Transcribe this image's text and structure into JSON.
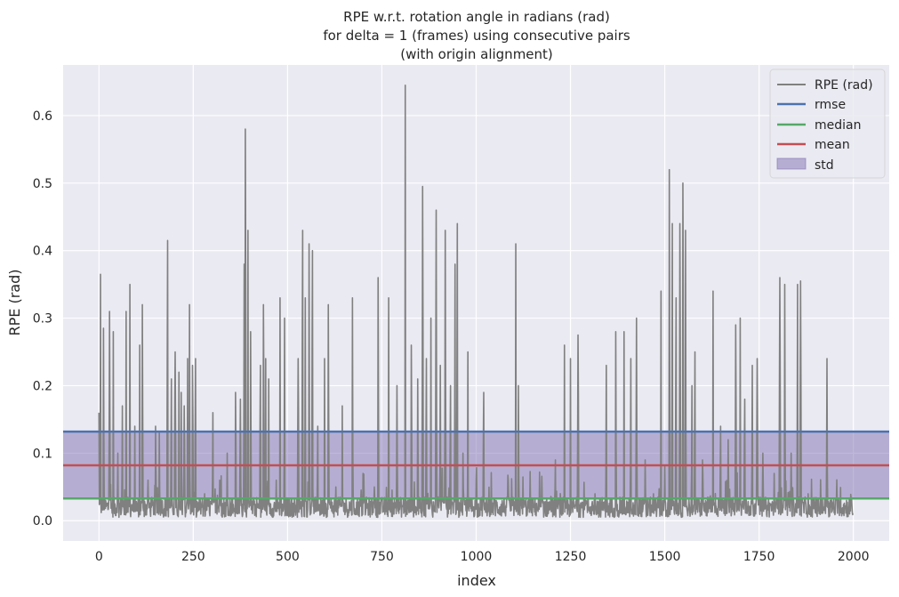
{
  "chart_data": {
    "type": "line",
    "title": [
      "RPE w.r.t. rotation angle in radians (rad)",
      "for delta = 1 (frames) using consecutive pairs",
      "(with origin alignment)"
    ],
    "xlabel": "index",
    "ylabel": "RPE (rad)",
    "xlim": [
      -95,
      2095
    ],
    "ylim": [
      -0.03,
      0.675
    ],
    "x_ticks": [
      0,
      250,
      500,
      750,
      1000,
      1250,
      1500,
      1750,
      2000
    ],
    "y_ticks": [
      0.0,
      0.1,
      0.2,
      0.3,
      0.4,
      0.5,
      0.6
    ],
    "y_tick_labels": [
      "0.0",
      "0.1",
      "0.2",
      "0.3",
      "0.4",
      "0.5",
      "0.6"
    ],
    "grid": true,
    "legend_position": "top-right",
    "colors": {
      "background": "#eaeaf2",
      "grid": "#ffffff",
      "rpe": "#808080",
      "rmse": "#4c72b0",
      "median": "#55a868",
      "mean": "#c44e52",
      "std": "#8172b2"
    },
    "stats": {
      "rmse": 0.132,
      "median": 0.033,
      "mean": 0.082,
      "std": 0.05
    },
    "std_band": [
      0.032,
      0.132
    ],
    "series": [
      {
        "name": "RPE (rad)",
        "kind": "line",
        "n_points": 2000,
        "baseline_low": 0.005,
        "baseline_high": 0.035,
        "peaks": [
          [
            0,
            0.16
          ],
          [
            4,
            0.365
          ],
          [
            12,
            0.285
          ],
          [
            28,
            0.31
          ],
          [
            38,
            0.28
          ],
          [
            50,
            0.1
          ],
          [
            62,
            0.17
          ],
          [
            72,
            0.31
          ],
          [
            82,
            0.35
          ],
          [
            95,
            0.14
          ],
          [
            108,
            0.26
          ],
          [
            115,
            0.32
          ],
          [
            130,
            0.06
          ],
          [
            150,
            0.14
          ],
          [
            160,
            0.13
          ],
          [
            182,
            0.415
          ],
          [
            192,
            0.21
          ],
          [
            202,
            0.25
          ],
          [
            212,
            0.22
          ],
          [
            218,
            0.19
          ],
          [
            226,
            0.17
          ],
          [
            235,
            0.24
          ],
          [
            240,
            0.32
          ],
          [
            248,
            0.23
          ],
          [
            256,
            0.24
          ],
          [
            280,
            0.04
          ],
          [
            302,
            0.16
          ],
          [
            320,
            0.06
          ],
          [
            340,
            0.1
          ],
          [
            362,
            0.19
          ],
          [
            375,
            0.18
          ],
          [
            385,
            0.38
          ],
          [
            388,
            0.58
          ],
          [
            395,
            0.43
          ],
          [
            402,
            0.28
          ],
          [
            428,
            0.23
          ],
          [
            436,
            0.32
          ],
          [
            442,
            0.24
          ],
          [
            450,
            0.21
          ],
          [
            470,
            0.06
          ],
          [
            480,
            0.33
          ],
          [
            492,
            0.3
          ],
          [
            510,
            0.03
          ],
          [
            528,
            0.24
          ],
          [
            540,
            0.43
          ],
          [
            547,
            0.33
          ],
          [
            557,
            0.41
          ],
          [
            566,
            0.4
          ],
          [
            580,
            0.14
          ],
          [
            598,
            0.24
          ],
          [
            608,
            0.32
          ],
          [
            628,
            0.05
          ],
          [
            645,
            0.17
          ],
          [
            672,
            0.33
          ],
          [
            700,
            0.07
          ],
          [
            730,
            0.05
          ],
          [
            740,
            0.36
          ],
          [
            768,
            0.33
          ],
          [
            790,
            0.2
          ],
          [
            812,
            0.645
          ],
          [
            828,
            0.26
          ],
          [
            845,
            0.21
          ],
          [
            858,
            0.495
          ],
          [
            868,
            0.24
          ],
          [
            880,
            0.3
          ],
          [
            894,
            0.46
          ],
          [
            905,
            0.23
          ],
          [
            918,
            0.43
          ],
          [
            932,
            0.2
          ],
          [
            944,
            0.38
          ],
          [
            950,
            0.44
          ],
          [
            965,
            0.1
          ],
          [
            978,
            0.25
          ],
          [
            1000,
            0.06
          ],
          [
            1020,
            0.19
          ],
          [
            1050,
            0.03
          ],
          [
            1085,
            0.06
          ],
          [
            1105,
            0.41
          ],
          [
            1112,
            0.2
          ],
          [
            1140,
            0.03
          ],
          [
            1180,
            0.02
          ],
          [
            1210,
            0.09
          ],
          [
            1234,
            0.26
          ],
          [
            1250,
            0.24
          ],
          [
            1270,
            0.275
          ],
          [
            1290,
            0.03
          ],
          [
            1315,
            0.04
          ],
          [
            1345,
            0.23
          ],
          [
            1370,
            0.28
          ],
          [
            1392,
            0.28
          ],
          [
            1410,
            0.24
          ],
          [
            1425,
            0.3
          ],
          [
            1448,
            0.09
          ],
          [
            1470,
            0.04
          ],
          [
            1490,
            0.34
          ],
          [
            1500,
            0.08
          ],
          [
            1512,
            0.52
          ],
          [
            1520,
            0.44
          ],
          [
            1530,
            0.33
          ],
          [
            1540,
            0.44
          ],
          [
            1548,
            0.5
          ],
          [
            1555,
            0.43
          ],
          [
            1572,
            0.2
          ],
          [
            1580,
            0.25
          ],
          [
            1600,
            0.09
          ],
          [
            1628,
            0.34
          ],
          [
            1648,
            0.14
          ],
          [
            1668,
            0.12
          ],
          [
            1688,
            0.29
          ],
          [
            1700,
            0.3
          ],
          [
            1712,
            0.18
          ],
          [
            1732,
            0.23
          ],
          [
            1745,
            0.24
          ],
          [
            1760,
            0.1
          ],
          [
            1790,
            0.07
          ],
          [
            1805,
            0.36
          ],
          [
            1818,
            0.35
          ],
          [
            1835,
            0.1
          ],
          [
            1852,
            0.35
          ],
          [
            1860,
            0.355
          ],
          [
            1880,
            0.04
          ],
          [
            1900,
            0.02
          ],
          [
            1930,
            0.24
          ],
          [
            1960,
            0.03
          ],
          [
            1990,
            0.01
          ]
        ]
      },
      {
        "name": "rmse",
        "kind": "hline",
        "value": 0.132
      },
      {
        "name": "median",
        "kind": "hline",
        "value": 0.033
      },
      {
        "name": "mean",
        "kind": "hline",
        "value": 0.082
      },
      {
        "name": "std",
        "kind": "band",
        "range": [
          0.032,
          0.132
        ]
      }
    ]
  }
}
